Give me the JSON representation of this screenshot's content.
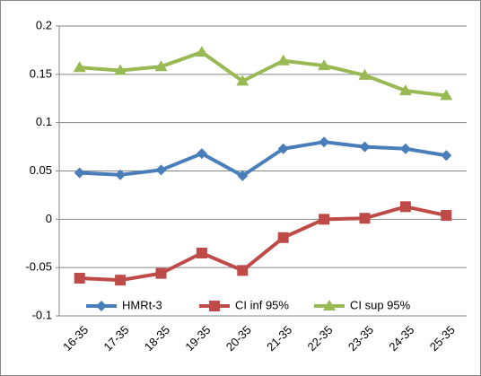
{
  "chart_data": {
    "type": "line",
    "categories": [
      "16-35",
      "17-35",
      "18-35",
      "19-35",
      "20-35",
      "21-35",
      "22-35",
      "23-35",
      "24-35",
      "25-35"
    ],
    "series": [
      {
        "name": "HMRt-3",
        "color": "#4a7ebb",
        "marker": "diamond",
        "values": [
          0.048,
          0.046,
          0.051,
          0.068,
          0.045,
          0.073,
          0.08,
          0.075,
          0.073,
          0.066
        ]
      },
      {
        "name": "CI inf 95%",
        "color": "#be4b48",
        "marker": "square",
        "values": [
          -0.061,
          -0.063,
          -0.056,
          -0.035,
          -0.053,
          -0.019,
          0.0,
          0.001,
          0.013,
          0.004
        ]
      },
      {
        "name": "CI sup 95%",
        "color": "#98b954",
        "marker": "triangle",
        "values": [
          0.157,
          0.154,
          0.158,
          0.173,
          0.143,
          0.164,
          0.159,
          0.149,
          0.133,
          0.128
        ]
      }
    ],
    "ylim": [
      -0.1,
      0.2
    ],
    "yticks": [
      -0.1,
      -0.05,
      0,
      0.05,
      0.1,
      0.15,
      0.2
    ],
    "grid": true,
    "legend": "bottom"
  }
}
